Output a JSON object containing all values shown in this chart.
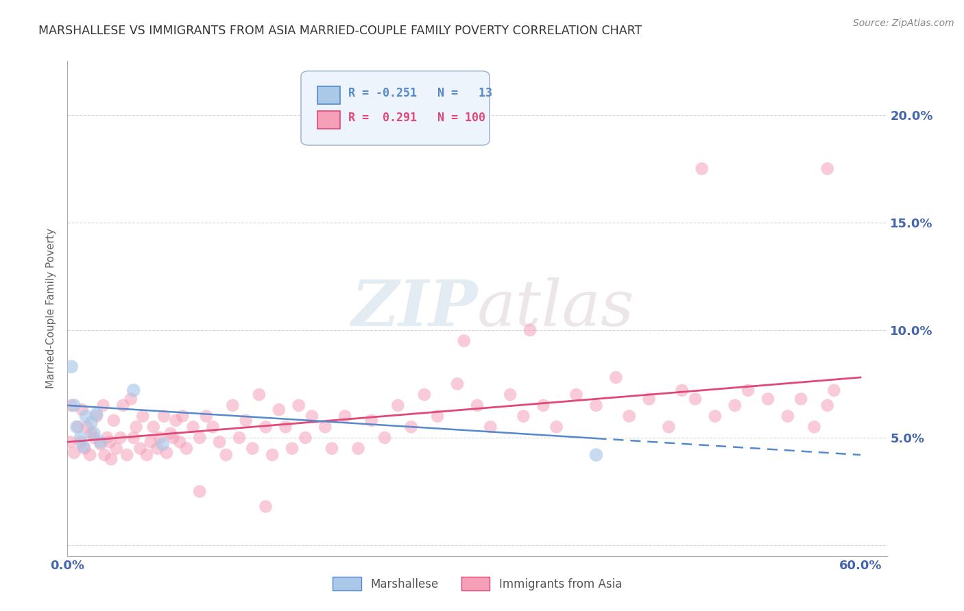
{
  "title": "MARSHALLESE VS IMMIGRANTS FROM ASIA MARRIED-COUPLE FAMILY POVERTY CORRELATION CHART",
  "source": "Source: ZipAtlas.com",
  "ylabel": "Married-Couple Family Poverty",
  "xlim": [
    0.0,
    0.62
  ],
  "ylim": [
    -0.005,
    0.225
  ],
  "yticks": [
    0.0,
    0.05,
    0.1,
    0.15,
    0.2
  ],
  "xticks": [
    0.0,
    0.1,
    0.2,
    0.3,
    0.4,
    0.5,
    0.6
  ],
  "marshallese_R": -0.251,
  "marshallese_N": 13,
  "asia_R": 0.291,
  "asia_N": 100,
  "marshallese_color": "#aac8e8",
  "asia_color": "#f5a0b8",
  "trend_marshallese_color": "#5588cc",
  "trend_asia_color": "#e04878",
  "background_color": "#ffffff",
  "grid_color": "#cccccc",
  "axis_color": "#aaaaaa",
  "title_color": "#333333",
  "label_color": "#4466aa",
  "watermark_zip": "ZIP",
  "watermark_atlas": "atlas",
  "legend_box_color": "#ddeeff",
  "legend_border_color": "#aabbcc",
  "marshallese_x": [
    0.003,
    0.005,
    0.007,
    0.01,
    0.012,
    0.014,
    0.018,
    0.02,
    0.022,
    0.025,
    0.05,
    0.072,
    0.4
  ],
  "marshallese_y": [
    0.083,
    0.065,
    0.055,
    0.05,
    0.046,
    0.06,
    0.057,
    0.052,
    0.061,
    0.048,
    0.072,
    0.047,
    0.042
  ],
  "asia_x": [
    0.002,
    0.003,
    0.005,
    0.008,
    0.01,
    0.011,
    0.013,
    0.015,
    0.017,
    0.018,
    0.02,
    0.022,
    0.025,
    0.027,
    0.028,
    0.03,
    0.032,
    0.033,
    0.035,
    0.037,
    0.04,
    0.042,
    0.045,
    0.048,
    0.05,
    0.052,
    0.055,
    0.057,
    0.06,
    0.063,
    0.065,
    0.068,
    0.07,
    0.073,
    0.075,
    0.078,
    0.08,
    0.082,
    0.085,
    0.087,
    0.09,
    0.095,
    0.1,
    0.105,
    0.11,
    0.115,
    0.12,
    0.125,
    0.13,
    0.135,
    0.14,
    0.145,
    0.15,
    0.155,
    0.16,
    0.165,
    0.17,
    0.175,
    0.18,
    0.185,
    0.195,
    0.2,
    0.21,
    0.22,
    0.23,
    0.24,
    0.25,
    0.26,
    0.27,
    0.28,
    0.295,
    0.31,
    0.32,
    0.335,
    0.345,
    0.36,
    0.37,
    0.385,
    0.4,
    0.415,
    0.425,
    0.44,
    0.455,
    0.465,
    0.475,
    0.49,
    0.505,
    0.515,
    0.53,
    0.545,
    0.555,
    0.565,
    0.575,
    0.58,
    0.48,
    0.575,
    0.35,
    0.3,
    0.15,
    0.1
  ],
  "asia_y": [
    0.048,
    0.065,
    0.043,
    0.055,
    0.048,
    0.063,
    0.045,
    0.055,
    0.042,
    0.052,
    0.05,
    0.06,
    0.047,
    0.065,
    0.042,
    0.05,
    0.048,
    0.04,
    0.058,
    0.045,
    0.05,
    0.065,
    0.042,
    0.068,
    0.05,
    0.055,
    0.045,
    0.06,
    0.042,
    0.048,
    0.055,
    0.045,
    0.05,
    0.06,
    0.043,
    0.052,
    0.05,
    0.058,
    0.048,
    0.06,
    0.045,
    0.055,
    0.05,
    0.06,
    0.055,
    0.048,
    0.042,
    0.065,
    0.05,
    0.058,
    0.045,
    0.07,
    0.055,
    0.042,
    0.063,
    0.055,
    0.045,
    0.065,
    0.05,
    0.06,
    0.055,
    0.045,
    0.06,
    0.045,
    0.058,
    0.05,
    0.065,
    0.055,
    0.07,
    0.06,
    0.075,
    0.065,
    0.055,
    0.07,
    0.06,
    0.065,
    0.055,
    0.07,
    0.065,
    0.078,
    0.06,
    0.068,
    0.055,
    0.072,
    0.068,
    0.06,
    0.065,
    0.072,
    0.068,
    0.06,
    0.068,
    0.055,
    0.065,
    0.072,
    0.175,
    0.175,
    0.1,
    0.095,
    0.018,
    0.025
  ]
}
